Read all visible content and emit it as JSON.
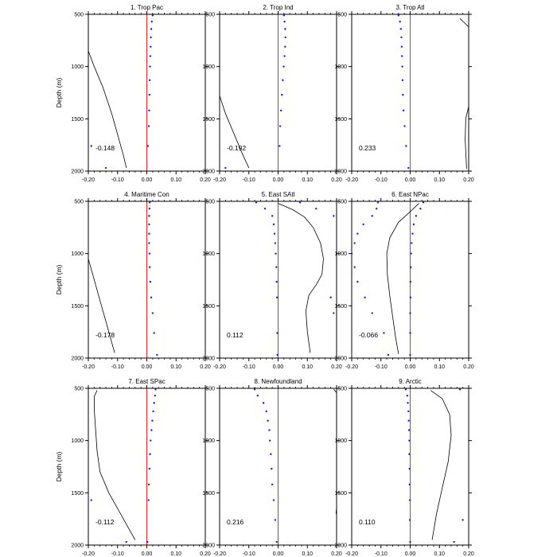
{
  "chart_data": [
    {
      "type": "line",
      "title": "1. Trop Pac",
      "xlim": [
        -0.2,
        0.2
      ],
      "ylim": [
        2000,
        500
      ],
      "xticks": [
        "-0.20",
        "-0.10",
        "0.00",
        "0.10",
        "0.20"
      ],
      "yticks": [
        "500",
        "1000",
        "1500",
        "2000"
      ],
      "ylabel": "Depth (m)",
      "value_label": "-0.148",
      "zero_line": 0,
      "curve": [
        [
          -0.2,
          850
        ],
        [
          -0.18,
          1000
        ],
        [
          -0.15,
          1200
        ],
        [
          -0.12,
          1450
        ],
        [
          -0.1,
          1650
        ],
        [
          -0.08,
          1850
        ],
        [
          -0.07,
          1970
        ]
      ],
      "dots": [
        [
          0.02,
          510
        ],
        [
          0.017,
          570
        ],
        [
          0.015,
          640
        ],
        [
          0.014,
          720
        ],
        [
          0.013,
          810
        ],
        [
          0.012,
          900
        ],
        [
          0.011,
          1000
        ],
        [
          0.01,
          1130
        ],
        [
          0.009,
          1270
        ],
        [
          0.008,
          1420
        ],
        [
          0.007,
          1570
        ],
        [
          0.004,
          1760
        ],
        [
          -0.19,
          1760
        ],
        [
          -0.14,
          1970
        ]
      ]
    },
    {
      "type": "line",
      "title": "2. Trop Ind",
      "xlim": [
        -0.2,
        0.2
      ],
      "ylim": [
        2000,
        500
      ],
      "xticks": [
        "-0.20",
        "-0.10",
        "0.00",
        "0.10",
        "0.20"
      ],
      "yticks": [
        "500",
        "1000",
        "1500",
        "2000"
      ],
      "ylabel": "",
      "value_label": "-0.192",
      "zero_line": 0,
      "curve": [
        [
          -0.2,
          1280
        ],
        [
          -0.18,
          1450
        ],
        [
          -0.15,
          1650
        ],
        [
          -0.12,
          1850
        ],
        [
          -0.1,
          1970
        ]
      ],
      "dots": [
        [
          0.02,
          510
        ],
        [
          0.022,
          570
        ],
        [
          0.024,
          640
        ],
        [
          0.025,
          720
        ],
        [
          0.024,
          810
        ],
        [
          0.022,
          900
        ],
        [
          0.019,
          1000
        ],
        [
          0.016,
          1130
        ],
        [
          0.013,
          1270
        ],
        [
          0.01,
          1420
        ],
        [
          0.007,
          1570
        ],
        [
          0.005,
          1760
        ],
        [
          -0.18,
          1970
        ]
      ]
    },
    {
      "type": "line",
      "title": "3. Trop Atl",
      "xlim": [
        -0.2,
        0.2
      ],
      "ylim": [
        2000,
        500
      ],
      "xticks": [
        "-0.20",
        "-0.10",
        "0.00",
        "0.10",
        "0.20"
      ],
      "yticks": [
        "500",
        "1000",
        "1500",
        "2000"
      ],
      "ylabel": "",
      "value_label": "0.233",
      "zero_line": 0,
      "curve_segments": [
        [
          [
            0.17,
            540
          ],
          [
            0.185,
            580
          ],
          [
            0.2,
            620
          ]
        ],
        [
          [
            0.2,
            1380
          ],
          [
            0.19,
            1500
          ],
          [
            0.188,
            1700
          ],
          [
            0.193,
            1980
          ]
        ]
      ],
      "dots": [
        [
          -0.04,
          510
        ],
        [
          -0.035,
          570
        ],
        [
          -0.032,
          640
        ],
        [
          -0.03,
          720
        ],
        [
          -0.029,
          810
        ],
        [
          -0.028,
          900
        ],
        [
          -0.027,
          1000
        ],
        [
          -0.026,
          1130
        ],
        [
          -0.025,
          1270
        ],
        [
          -0.023,
          1420
        ],
        [
          -0.019,
          1570
        ],
        [
          -0.014,
          1760
        ],
        [
          -0.006,
          1970
        ]
      ]
    },
    {
      "type": "line",
      "title": "4. Maritime Con",
      "xlim": [
        -0.2,
        0.2
      ],
      "ylim": [
        2000,
        500
      ],
      "xticks": [
        "-0.20",
        "-0.10",
        "0.00",
        "0.10",
        "0.20"
      ],
      "yticks": [
        "500",
        "1000",
        "1500",
        "2000"
      ],
      "ylabel": "Depth (m)",
      "value_label": "-0.178",
      "zero_line": 0,
      "curve": [
        [
          -0.2,
          1050
        ],
        [
          -0.18,
          1250
        ],
        [
          -0.16,
          1450
        ],
        [
          -0.14,
          1650
        ],
        [
          -0.12,
          1850
        ],
        [
          -0.11,
          1950
        ]
      ],
      "dots": [
        [
          0.01,
          510
        ],
        [
          0.009,
          570
        ],
        [
          0.008,
          640
        ],
        [
          0.008,
          720
        ],
        [
          0.008,
          810
        ],
        [
          0.008,
          900
        ],
        [
          0.009,
          1000
        ],
        [
          0.01,
          1130
        ],
        [
          0.012,
          1270
        ],
        [
          0.015,
          1420
        ],
        [
          0.02,
          1570
        ],
        [
          0.025,
          1760
        ],
        [
          0.035,
          1970
        ]
      ]
    },
    {
      "type": "line",
      "title": "5. East SAtl",
      "xlim": [
        -0.2,
        0.2
      ],
      "ylim": [
        2000,
        500
      ],
      "xticks": [
        "-0.20",
        "-0.10",
        "0.00",
        "0.10",
        "0.20"
      ],
      "yticks": [
        "500",
        "1000",
        "1500",
        "2000"
      ],
      "ylabel": "",
      "value_label": "0.112",
      "zero_line": 0,
      "curve": [
        [
          0.0,
          520
        ],
        [
          0.05,
          580
        ],
        [
          0.09,
          650
        ],
        [
          0.12,
          750
        ],
        [
          0.145,
          900
        ],
        [
          0.155,
          1050
        ],
        [
          0.15,
          1200
        ],
        [
          0.13,
          1300
        ],
        [
          0.105,
          1400
        ],
        [
          0.095,
          1550
        ],
        [
          0.1,
          1750
        ],
        [
          0.11,
          1950
        ]
      ],
      "dots": [
        [
          -0.075,
          510
        ],
        [
          0.075,
          510
        ],
        [
          -0.045,
          570
        ],
        [
          0.13,
          570
        ],
        [
          -0.02,
          640
        ],
        [
          0.19,
          640
        ],
        [
          -0.015,
          720
        ],
        [
          -0.012,
          810
        ],
        [
          -0.01,
          900
        ],
        [
          -0.008,
          1000
        ],
        [
          -0.006,
          1130
        ],
        [
          -0.005,
          1270
        ],
        [
          -0.004,
          1420
        ],
        [
          0.18,
          1420
        ],
        [
          0.19,
          1570
        ],
        [
          -0.003,
          1760
        ],
        [
          -0.002,
          1970
        ]
      ]
    },
    {
      "type": "line",
      "title": "6. East NPac",
      "xlim": [
        -0.2,
        0.2
      ],
      "ylim": [
        2000,
        500
      ],
      "xticks": [
        "-0.20",
        "-0.10",
        "0.00",
        "0.10",
        "0.20"
      ],
      "yticks": [
        "500",
        "1000",
        "1500",
        "2000"
      ],
      "ylabel": "",
      "value_label": "-0.066",
      "zero_line": 0,
      "curve": [
        [
          0.03,
          520
        ],
        [
          0.0,
          600
        ],
        [
          -0.04,
          700
        ],
        [
          -0.07,
          850
        ],
        [
          -0.08,
          1000
        ],
        [
          -0.078,
          1200
        ],
        [
          -0.07,
          1400
        ],
        [
          -0.06,
          1600
        ],
        [
          -0.05,
          1800
        ],
        [
          -0.04,
          1960
        ]
      ],
      "dots": [
        [
          -0.11,
          510
        ],
        [
          0.045,
          510
        ],
        [
          -0.115,
          570
        ],
        [
          0.035,
          570
        ],
        [
          -0.13,
          640
        ],
        [
          0.02,
          640
        ],
        [
          -0.16,
          720
        ],
        [
          0.012,
          720
        ],
        [
          -0.18,
          810
        ],
        [
          0.008,
          810
        ],
        [
          -0.19,
          900
        ],
        [
          0.005,
          900
        ],
        [
          -0.2,
          1000
        ],
        [
          0.003,
          1000
        ],
        [
          -0.19,
          1130
        ],
        [
          0.002,
          1130
        ],
        [
          -0.18,
          1270
        ],
        [
          0.001,
          1270
        ],
        [
          -0.155,
          1420
        ],
        [
          0.001,
          1420
        ],
        [
          -0.13,
          1570
        ],
        [
          0.0,
          1570
        ],
        [
          -0.09,
          1760
        ],
        [
          0.0,
          1760
        ],
        [
          -0.075,
          1970
        ],
        [
          0.0,
          1970
        ]
      ]
    },
    {
      "type": "line",
      "title": "7. East SPac",
      "xlim": [
        -0.2,
        0.2
      ],
      "ylim": [
        2000,
        500
      ],
      "xticks": [
        "-0.20",
        "-0.10",
        "0.00",
        "0.10",
        "0.20"
      ],
      "yticks": [
        "500",
        "1000",
        "1500",
        "2000"
      ],
      "ylabel": "Depth (m)",
      "value_label": "-0.112",
      "zero_line": 0,
      "curve": [
        [
          -0.17,
          520
        ],
        [
          -0.18,
          580
        ],
        [
          -0.18,
          700
        ],
        [
          -0.175,
          900
        ],
        [
          -0.17,
          1100
        ],
        [
          -0.16,
          1300
        ],
        [
          -0.13,
          1500
        ],
        [
          -0.09,
          1700
        ],
        [
          -0.06,
          1850
        ],
        [
          -0.04,
          1950
        ]
      ],
      "dots": [
        [
          0.03,
          510
        ],
        [
          0.028,
          570
        ],
        [
          0.025,
          640
        ],
        [
          0.022,
          720
        ],
        [
          0.019,
          810
        ],
        [
          0.016,
          900
        ],
        [
          0.013,
          1000
        ],
        [
          0.011,
          1130
        ],
        [
          0.009,
          1270
        ],
        [
          0.007,
          1420
        ],
        [
          0.006,
          1570
        ],
        [
          -0.19,
          1570
        ],
        [
          -0.07,
          1970
        ],
        [
          0.002,
          1970
        ]
      ]
    },
    {
      "type": "line",
      "title": "8. Newfoundland",
      "xlim": [
        -0.2,
        0.2
      ],
      "ylim": [
        2000,
        500
      ],
      "xticks": [
        "-0.20",
        "-0.10",
        "0.00",
        "0.10",
        "0.20"
      ],
      "yticks": [
        "500",
        "1000",
        "1500",
        "2000"
      ],
      "ylabel": "",
      "value_label": "0.216",
      "zero_line": 0,
      "curve_segments": [
        [
          [
            0.19,
            510
          ],
          [
            0.2,
            540
          ]
        ],
        [
          [
            0.2,
            1640
          ],
          [
            0.198,
            1700
          ]
        ]
      ],
      "dots": [
        [
          -0.08,
          510
        ],
        [
          -0.07,
          570
        ],
        [
          -0.05,
          640
        ],
        [
          -0.04,
          720
        ],
        [
          -0.035,
          810
        ],
        [
          -0.03,
          900
        ],
        [
          -0.028,
          1000
        ],
        [
          -0.025,
          1130
        ],
        [
          -0.022,
          1270
        ],
        [
          -0.02,
          1420
        ],
        [
          -0.015,
          1570
        ],
        [
          -0.01,
          1760
        ],
        [
          -0.005,
          1970
        ]
      ]
    },
    {
      "type": "line",
      "title": "9. Arctic",
      "xlim": [
        -0.2,
        0.2
      ],
      "ylim": [
        2000,
        500
      ],
      "xticks": [
        "-0.20",
        "-0.10",
        "0.00",
        "0.10",
        "0.20"
      ],
      "yticks": [
        "500",
        "1000",
        "1500",
        "2000"
      ],
      "ylabel": "",
      "value_label": "0.110",
      "zero_line": 0,
      "curve": [
        [
          0.07,
          520
        ],
        [
          0.11,
          600
        ],
        [
          0.135,
          750
        ],
        [
          0.14,
          950
        ],
        [
          0.13,
          1200
        ],
        [
          0.11,
          1450
        ],
        [
          0.09,
          1700
        ],
        [
          0.075,
          1950
        ]
      ],
      "dots": [
        [
          -0.015,
          510
        ],
        [
          0.17,
          510
        ],
        [
          -0.01,
          570
        ],
        [
          -0.008,
          640
        ],
        [
          -0.006,
          720
        ],
        [
          -0.005,
          810
        ],
        [
          -0.004,
          900
        ],
        [
          -0.003,
          1000
        ],
        [
          -0.003,
          1130
        ],
        [
          -0.002,
          1270
        ],
        [
          -0.002,
          1420
        ],
        [
          -0.001,
          1570
        ],
        [
          0.18,
          1760
        ],
        [
          -0.001,
          1760
        ],
        [
          0.15,
          1970
        ],
        [
          0.0,
          1970
        ]
      ]
    }
  ]
}
